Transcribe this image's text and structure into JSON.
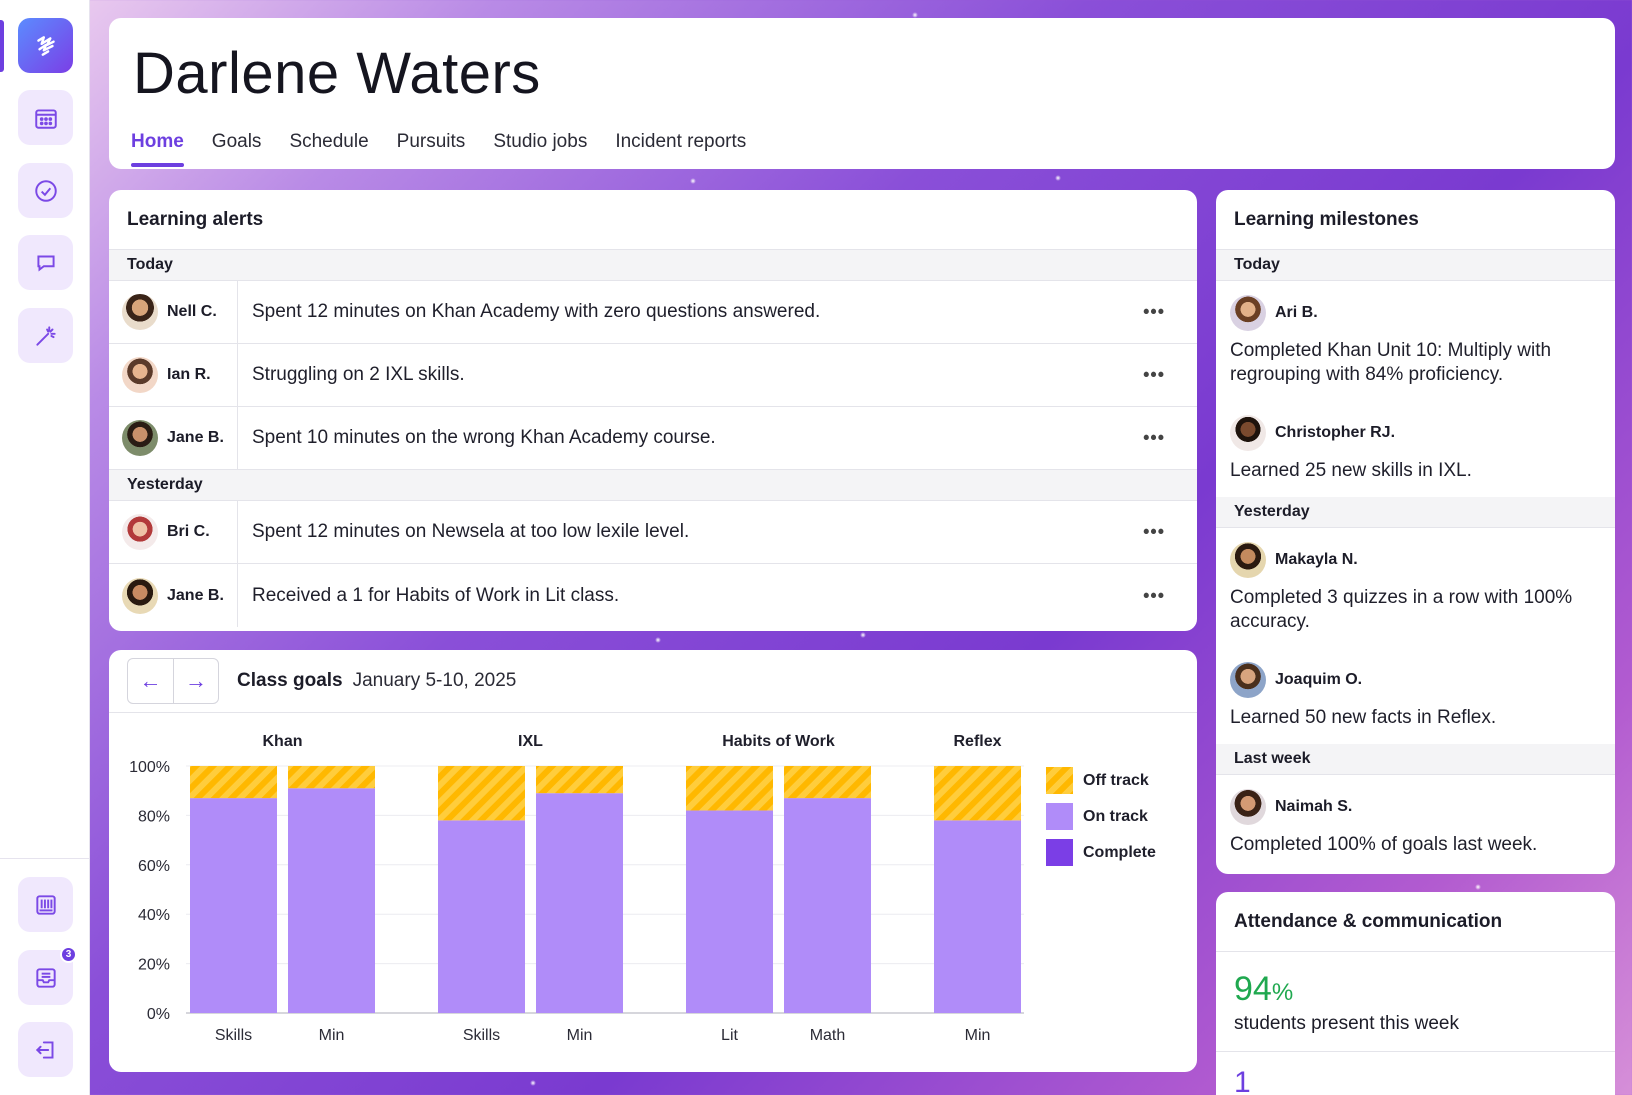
{
  "student": {
    "name": "Darlene Waters"
  },
  "tabs": [
    "Home",
    "Goals",
    "Schedule",
    "Pursuits",
    "Studio jobs",
    "Incident reports"
  ],
  "sidebar": {
    "badge_count": "3"
  },
  "alerts": {
    "title": "Learning alerts",
    "sections": [
      {
        "label": "Today",
        "rows": [
          {
            "name": "Nell C.",
            "text": "Spent 12 minutes on Khan Academy with zero questions answered."
          },
          {
            "name": "Ian R.",
            "text": "Struggling on 2 IXL skills."
          },
          {
            "name": "Jane B.",
            "text": "Spent 10 minutes on the wrong Khan Academy course."
          }
        ]
      },
      {
        "label": "Yesterday",
        "rows": [
          {
            "name": "Bri C.",
            "text": "Spent 12 minutes on Newsela at too low lexile level."
          },
          {
            "name": "Jane B.",
            "text": "Received a 1 for Habits of Work in Lit class."
          }
        ]
      }
    ],
    "more_glyph": "•••"
  },
  "milestones": {
    "title": "Learning milestones",
    "sections": [
      {
        "label": "Today",
        "items": [
          {
            "name": "Ari B.",
            "text": "Completed Khan Unit 10: Multiply with regrouping with 84% proficiency."
          },
          {
            "name": "Christopher RJ.",
            "text": "Learned 25 new skills in IXL."
          }
        ]
      },
      {
        "label": "Yesterday",
        "items": [
          {
            "name": "Makayla N.",
            "text": "Completed 3 quizzes in a row with 100% accuracy."
          },
          {
            "name": "Joaquim O.",
            "text": "Learned 50 new facts in Reflex."
          }
        ]
      },
      {
        "label": "Last week",
        "items": [
          {
            "name": "Naimah S.",
            "text": "Completed 100% of goals last week."
          }
        ]
      }
    ]
  },
  "goals": {
    "title": "Class goals",
    "date": "January 5-10, 2025",
    "prev_glyph": "←",
    "next_glyph": "→"
  },
  "attendance": {
    "title": "Attendance & communication",
    "value": "94",
    "unit": "%",
    "label": "students present this week",
    "next_value": "1"
  },
  "colors": {
    "accent": "#6d3fe0",
    "off_track": "#ffb800",
    "on_track": "#b08cf9",
    "complete": "#7b3ee6",
    "attendance": "#1fa84f"
  },
  "chart_data": {
    "type": "bar",
    "stacked": true,
    "groups": [
      {
        "label": "Khan",
        "bars": [
          {
            "x": "Skills",
            "on_track": 87,
            "off_track": 13,
            "complete": 0
          },
          {
            "x": "Min",
            "on_track": 91,
            "off_track": 9,
            "complete": 0
          }
        ]
      },
      {
        "label": "IXL",
        "bars": [
          {
            "x": "Skills",
            "on_track": 78,
            "off_track": 22,
            "complete": 0
          },
          {
            "x": "Min",
            "on_track": 89,
            "off_track": 11,
            "complete": 0
          }
        ]
      },
      {
        "label": "Habits of Work",
        "bars": [
          {
            "x": "Lit",
            "on_track": 82,
            "off_track": 18,
            "complete": 0
          },
          {
            "x": "Math",
            "on_track": 87,
            "off_track": 13,
            "complete": 0
          }
        ]
      },
      {
        "label": "Reflex",
        "bars": [
          {
            "x": "Min",
            "on_track": 78,
            "off_track": 22,
            "complete": 0
          }
        ]
      }
    ],
    "yticks": [
      "100%",
      "80%",
      "60%",
      "40%",
      "20%",
      "0%"
    ],
    "ylim": [
      0,
      100
    ],
    "legend": [
      {
        "key": "off_track",
        "label": "Off track"
      },
      {
        "key": "on_track",
        "label": "On track"
      },
      {
        "key": "complete",
        "label": "Complete"
      }
    ],
    "legend_position": "right",
    "grid": true
  }
}
